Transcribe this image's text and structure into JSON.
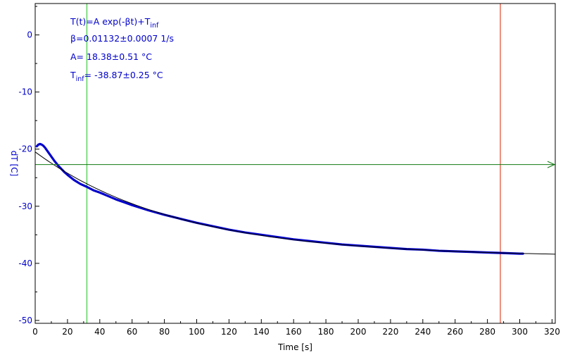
{
  "chart_data": {
    "type": "scatter",
    "xlabel": "Time [s]",
    "ylabel": "dT [C]",
    "xlim": [
      0,
      322
    ],
    "ylim": [
      -50.5,
      5.5
    ],
    "x_ticks": [
      0,
      20,
      40,
      60,
      80,
      100,
      120,
      140,
      160,
      180,
      200,
      220,
      240,
      260,
      280,
      300,
      320
    ],
    "y_ticks": [
      0,
      -10,
      -20,
      -30,
      -40,
      -50
    ],
    "grid": false,
    "annotations": {
      "formula_main": "T(t)=A exp(-βt)+T",
      "formula_sub": "inf",
      "beta": "β=0.01132±0.0007 1/s",
      "amplitude": "A= 18.38±0.51 °C",
      "tinf_main": "T",
      "tinf_sub": "inf",
      "tinf_rest": "= -38.87±0.25 °C"
    },
    "series": [
      {
        "kind": "measured",
        "color": "#0000cc",
        "x": [
          1,
          2,
          3,
          4,
          5,
          6,
          7,
          8,
          9,
          10,
          12,
          14,
          16,
          18,
          20,
          24,
          28,
          32,
          36,
          40,
          45,
          50,
          55,
          60,
          70,
          80,
          90,
          100,
          110,
          120,
          130,
          140,
          150,
          160,
          170,
          180,
          190,
          200,
          210,
          220,
          230,
          240,
          250,
          260,
          270,
          280,
          290,
          300,
          302
        ],
        "y": [
          -19.5,
          -19.2,
          -19.1,
          -19.2,
          -19.4,
          -19.7,
          -20.1,
          -20.5,
          -20.9,
          -21.3,
          -22.1,
          -22.8,
          -23.4,
          -24.0,
          -24.5,
          -25.4,
          -26.1,
          -26.6,
          -27.2,
          -27.6,
          -28.2,
          -28.8,
          -29.3,
          -29.8,
          -30.7,
          -31.5,
          -32.2,
          -32.9,
          -33.5,
          -34.1,
          -34.6,
          -35.0,
          -35.4,
          -35.8,
          -36.1,
          -36.4,
          -36.7,
          -36.9,
          -37.1,
          -37.3,
          -37.5,
          -37.6,
          -37.8,
          -37.9,
          -38.0,
          -38.1,
          -38.2,
          -38.3,
          -38.3
        ]
      },
      {
        "kind": "fit",
        "color": "#000000",
        "model": "exp_decay",
        "A": 18.38,
        "beta": 0.01132,
        "T_inf": -38.87,
        "x_range": [
          0,
          322
        ]
      }
    ],
    "vertical_markers": [
      {
        "x": 32,
        "color": "#22c322"
      },
      {
        "x": 288,
        "color": "#dd2200"
      }
    ],
    "horizontal_markers": [
      {
        "y": -22.7,
        "color": "#117711",
        "arrow": true
      }
    ]
  }
}
